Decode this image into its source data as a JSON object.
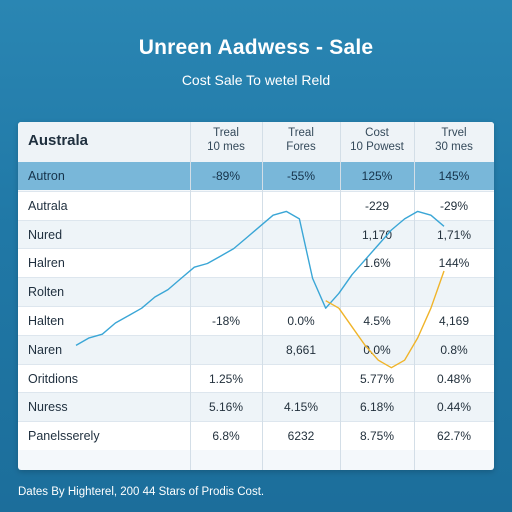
{
  "title": "Unreen Aadwess - Sale",
  "subtitle": "Cost Sale To wetel Reld",
  "footnote": "Dates By Highterel, 200 44 Stars of Prodis Cost.",
  "header": {
    "region_label": "Australa",
    "columns": [
      {
        "line1": "Treal",
        "line2": "10 mes"
      },
      {
        "line1": "Treal",
        "line2": "Fores"
      },
      {
        "line1": "Cost",
        "line2": "10 Powest"
      },
      {
        "line1": "Trvel",
        "line2": "30 mes"
      }
    ]
  },
  "rows": [
    {
      "region": "Autron",
      "values": [
        "-89%",
        "-55%",
        "125%",
        "145%"
      ],
      "highlight": true
    },
    {
      "region": "Autrala",
      "values": [
        "",
        "",
        "-229",
        "-29%"
      ]
    },
    {
      "region": "Nured",
      "values": [
        "",
        "",
        "1,170",
        "1,71%"
      ]
    },
    {
      "region": "Halren",
      "values": [
        "",
        "",
        "1.6%",
        "144%"
      ]
    },
    {
      "region": "Rolten",
      "values": [
        "",
        "",
        "",
        ""
      ]
    },
    {
      "region": "Halten",
      "values": [
        "-18%",
        "0.0%",
        "4.5%",
        "4,169"
      ]
    },
    {
      "region": "Naren",
      "values": [
        "",
        "8,661",
        "0.0%",
        "0.8%"
      ]
    },
    {
      "region": "Oritdions",
      "values": [
        "1.25%",
        "",
        "5.77%",
        "0.48%"
      ]
    },
    {
      "region": "Nuress",
      "values": [
        "5.16%",
        "4.15%",
        "6.18%",
        "0.44%"
      ]
    },
    {
      "region": "Panelsserely",
      "values": [
        "6.8%",
        "6232",
        "8.75%",
        "62.7%"
      ]
    }
  ],
  "chart_data": {
    "type": "line",
    "title": "",
    "xlabel": "",
    "ylabel": "",
    "x": [
      0,
      1,
      2,
      3,
      4,
      5,
      6,
      7,
      8,
      9,
      10,
      11,
      12,
      13,
      14,
      15,
      16,
      17,
      18,
      19,
      20,
      21,
      22,
      23,
      24,
      25,
      26,
      27,
      28
    ],
    "series": [
      {
        "name": "",
        "color": "#3aa6d6",
        "values": [
          12,
          14,
          15,
          18,
          20,
          22,
          25,
          27,
          30,
          33,
          34,
          36,
          38,
          41,
          44,
          47,
          48,
          46,
          30,
          22,
          26,
          31,
          35,
          39,
          43,
          46,
          48,
          47,
          44
        ]
      },
      {
        "name": "",
        "color": "#f0b429",
        "values": [
          null,
          null,
          null,
          null,
          null,
          null,
          null,
          null,
          null,
          null,
          null,
          null,
          null,
          null,
          null,
          null,
          null,
          null,
          null,
          24,
          22,
          17,
          12,
          8,
          6,
          8,
          14,
          22,
          32
        ]
      }
    ]
  }
}
